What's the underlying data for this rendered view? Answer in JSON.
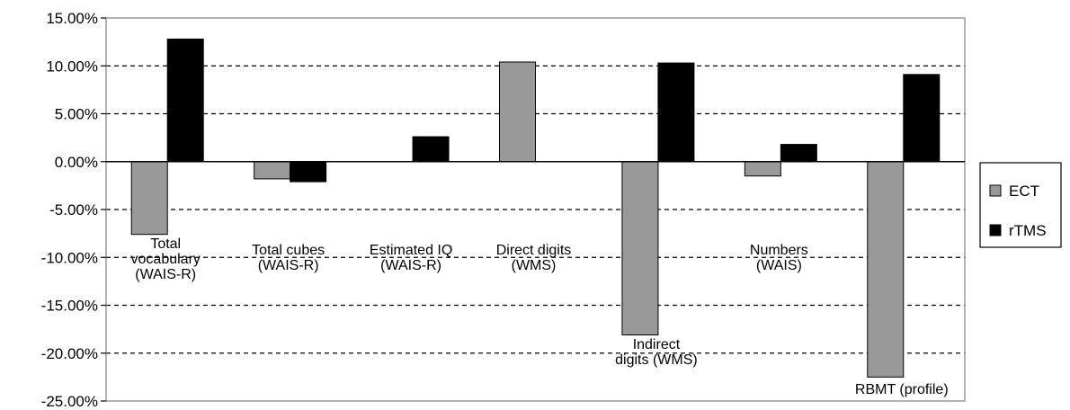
{
  "chart_data": {
    "type": "bar",
    "categories": [
      [
        "Total",
        "vocabulary",
        "(WAIS-R)"
      ],
      [
        "Total cubes",
        "(WAIS-R)"
      ],
      [
        "Estimated IQ",
        "(WAIS-R)"
      ],
      [
        "Direct digits",
        "(WMS)"
      ],
      [
        "Indirect",
        "digits (WMS)"
      ],
      [
        "Numbers",
        "(WAIS)"
      ],
      [
        "RBMT (profile)"
      ]
    ],
    "series": [
      {
        "name": "ECT",
        "color": "#999999",
        "values": [
          -7.6,
          -1.8,
          0.0,
          10.4,
          -18.1,
          -1.5,
          -22.5
        ]
      },
      {
        "name": "rTMS",
        "color": "#000000",
        "values": [
          12.8,
          -2.1,
          2.6,
          0.0,
          10.3,
          1.8,
          9.1
        ]
      }
    ],
    "ylim": [
      -25,
      15
    ],
    "yticks": [
      15,
      10,
      5,
      0,
      -5,
      -10,
      -15,
      -20,
      -25
    ],
    "ytick_labels": [
      "15.00%",
      "10.00%",
      "5.00%",
      "0.00%",
      "-5.00%",
      "-10.00%",
      "-15.00%",
      "-20.00%",
      "-25.00%"
    ],
    "grid": "horizontal-dashed",
    "legend_position": "right"
  }
}
